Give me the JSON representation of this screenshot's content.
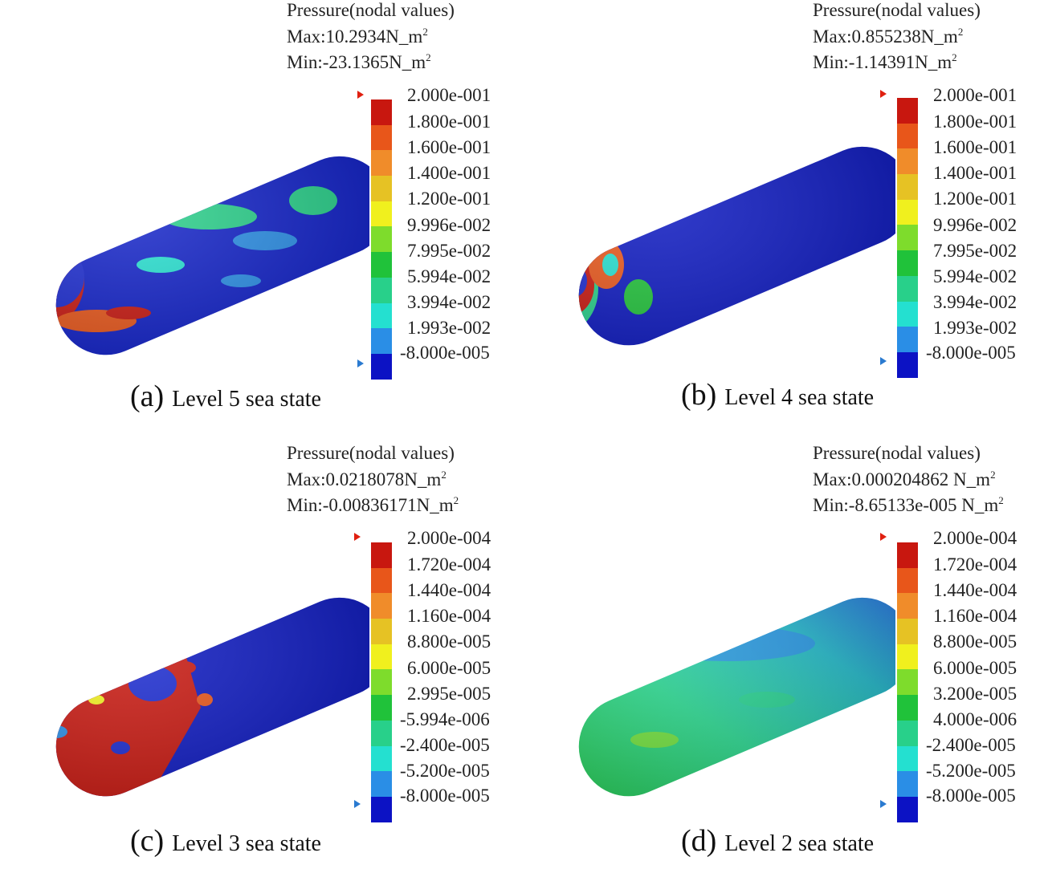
{
  "palette": [
    "#c8170f",
    "#e8561a",
    "#f08c2a",
    "#e6c224",
    "#f0f01e",
    "#7edc2c",
    "#20c23a",
    "#28d08a",
    "#24e0d0",
    "#2a8ee6",
    "#0c12c4"
  ],
  "panels": [
    {
      "title": "Pressure(nodal values)",
      "max_label": "Max:10.2934N_m",
      "min_label": "Min:-23.1365N_m",
      "unit_exp": "2",
      "ticks": [
        "2.000e-001",
        "1.800e-001",
        "1.600e-001",
        "1.400e-001",
        "1.200e-001",
        "9.996e-002",
        "7.995e-002",
        "5.994e-002",
        "3.994e-002",
        "1.993e-002",
        "-8.000e-005"
      ],
      "caption_letter": "(a)",
      "caption_text": "Level 5 sea state",
      "marker_top_color": "#e02010",
      "marker_bottom_color": "#2a7ad0"
    },
    {
      "title": "Pressure(nodal values)",
      "max_label": "Max:0.855238N_m",
      "min_label": "Min:-1.14391N_m",
      "unit_exp": "2",
      "ticks": [
        "2.000e-001",
        "1.800e-001",
        "1.600e-001",
        "1.400e-001",
        "1.200e-001",
        "9.996e-002",
        "7.995e-002",
        "5.994e-002",
        "3.994e-002",
        "1.993e-002",
        "-8.000e-005"
      ],
      "caption_letter": "(b)",
      "caption_text": "Level 4 sea state",
      "marker_top_color": "#e02010",
      "marker_bottom_color": "#2a7ad0"
    },
    {
      "title": "Pressure(nodal values)",
      "max_label": "Max:0.0218078N_m",
      "min_label": "Min:-0.00836171N_m",
      "unit_exp": "2",
      "ticks": [
        "2.000e-004",
        "1.720e-004",
        "1.440e-004",
        "1.160e-004",
        "8.800e-005",
        "6.000e-005",
        "2.995e-005",
        "-5.994e-006",
        "-2.400e-005",
        "-5.200e-005",
        "-8.000e-005"
      ],
      "caption_letter": "(c)",
      "caption_text": "Level 3 sea state",
      "marker_top_color": "#e02010",
      "marker_bottom_color": "#2a7ad0"
    },
    {
      "title": "Pressure(nodal values)",
      "max_label": "Max:0.000204862 N_m",
      "min_label": "Min:-8.65133e-005 N_m",
      "unit_exp": "2",
      "ticks": [
        "2.000e-004",
        "1.720e-004",
        "1.440e-004",
        "1.160e-004",
        "8.800e-005",
        "6.000e-005",
        "3.200e-005",
        "4.000e-006",
        "-2.400e-005",
        "-5.200e-005",
        "-8.000e-005"
      ],
      "caption_letter": "(d)",
      "caption_text": "Level 2 sea state",
      "marker_top_color": "#e02010",
      "marker_bottom_color": "#2a7ad0"
    }
  ]
}
